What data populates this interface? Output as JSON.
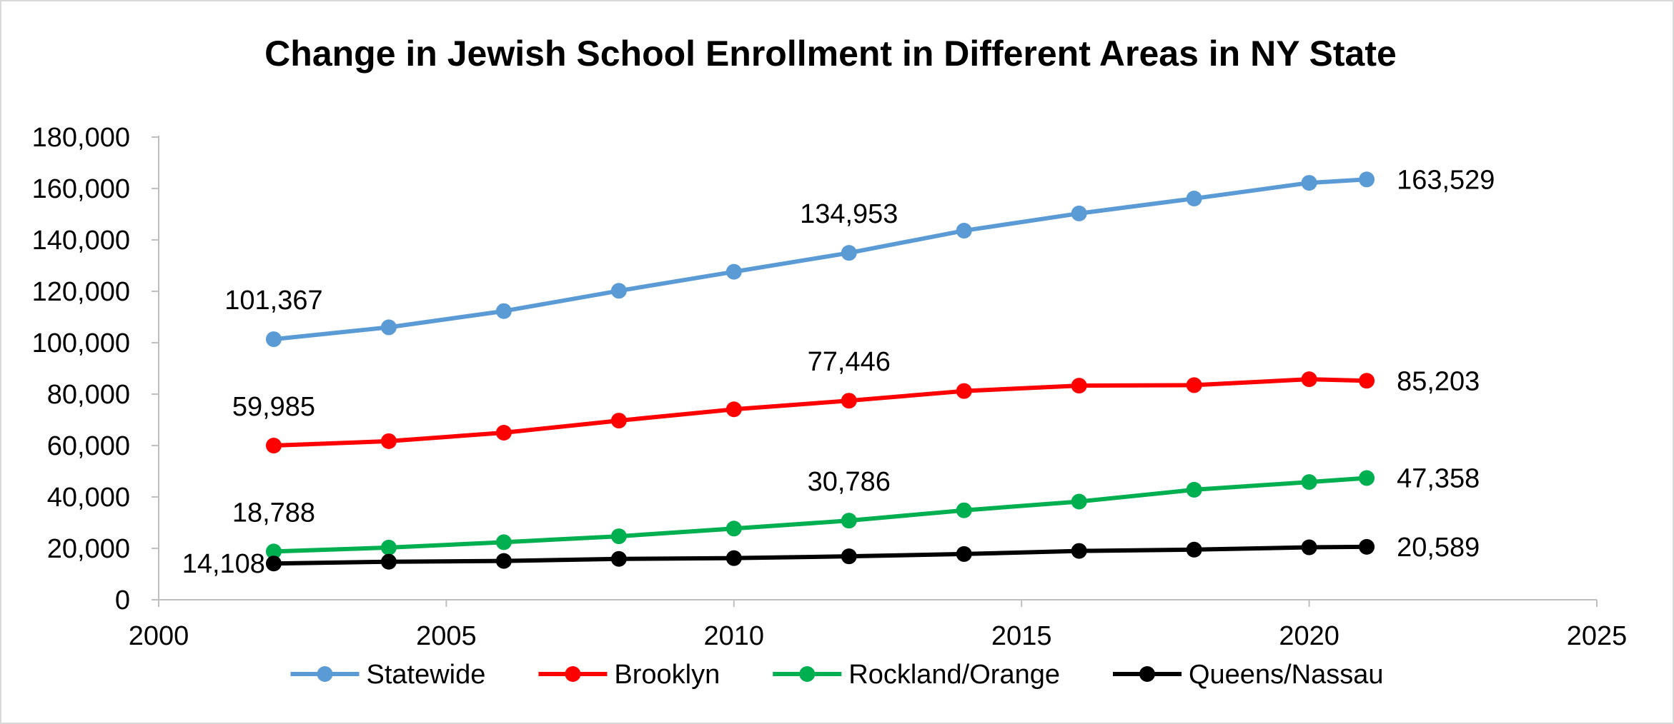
{
  "chart_data": {
    "type": "line",
    "title": "Change in Jewish School Enrollment in Different Areas in NY State",
    "xlabel": "",
    "ylabel": "",
    "xlim": [
      2000,
      2025
    ],
    "ylim": [
      0,
      180000
    ],
    "x_ticks": [
      2000,
      2005,
      2010,
      2015,
      2020,
      2025
    ],
    "x_tick_labels": [
      "2000",
      "2005",
      "2010",
      "2015",
      "2020",
      "2025"
    ],
    "y_ticks": [
      0,
      20000,
      40000,
      60000,
      80000,
      100000,
      120000,
      140000,
      160000,
      180000
    ],
    "y_tick_labels": [
      "0",
      "20,000",
      "40,000",
      "60,000",
      "80,000",
      "100,000",
      "120,000",
      "140,000",
      "160,000",
      "180,000"
    ],
    "grid": false,
    "legend_position": "bottom",
    "x": [
      2002,
      2004,
      2006,
      2008,
      2010,
      2012,
      2014,
      2016,
      2018,
      2020,
      2021
    ],
    "series": [
      {
        "name": "Statewide",
        "color": "#5B9BD5",
        "values": [
          101367,
          106000,
          112300,
          120200,
          127600,
          134953,
          143600,
          150300,
          156100,
          162200,
          163529
        ],
        "labels": [
          {
            "index": 0,
            "text": "101,367",
            "placement": "above"
          },
          {
            "index": 5,
            "text": "134,953",
            "placement": "above"
          },
          {
            "index": 10,
            "text": "163,529",
            "placement": "right"
          }
        ]
      },
      {
        "name": "Brooklyn",
        "color": "#FF0000",
        "values": [
          59985,
          61700,
          65000,
          69700,
          74100,
          77446,
          81200,
          83300,
          83500,
          85800,
          85203
        ],
        "labels": [
          {
            "index": 0,
            "text": "59,985",
            "placement": "above"
          },
          {
            "index": 5,
            "text": "77,446",
            "placement": "above"
          },
          {
            "index": 10,
            "text": "85,203",
            "placement": "right"
          }
        ]
      },
      {
        "name": "Rockland/Orange",
        "color": "#00B050",
        "values": [
          18788,
          20300,
          22400,
          24700,
          27700,
          30786,
          34800,
          38200,
          42800,
          45800,
          47358
        ],
        "labels": [
          {
            "index": 0,
            "text": "18,788",
            "placement": "above"
          },
          {
            "index": 5,
            "text": "30,786",
            "placement": "above"
          },
          {
            "index": 10,
            "text": "47,358",
            "placement": "right"
          }
        ]
      },
      {
        "name": "Queens/Nassau",
        "color": "#000000",
        "values": [
          14108,
          14800,
          15100,
          15900,
          16200,
          16900,
          17800,
          19000,
          19500,
          20400,
          20589
        ],
        "labels": [
          {
            "index": 0,
            "text": "14,108",
            "placement": "left"
          },
          {
            "index": 10,
            "text": "20,589",
            "placement": "right"
          }
        ]
      }
    ]
  }
}
